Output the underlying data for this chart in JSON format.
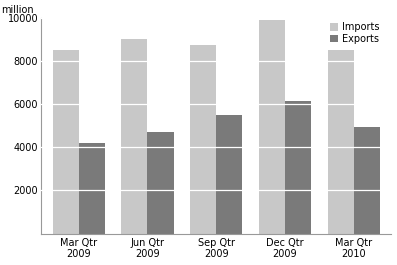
{
  "quarters": [
    "Mar Qtr\n2009",
    "Jun Qtr\n2009",
    "Sep Qtr\n2009",
    "Dec Qtr\n2009",
    "Mar Qtr\n2010"
  ],
  "imports": [
    8500,
    9000,
    8750,
    9900,
    8500
  ],
  "exports": [
    4200,
    4700,
    5500,
    6150,
    4950
  ],
  "imports_color": "#c8c8c8",
  "exports_color": "#7a7a7a",
  "ylabel": "million",
  "ylim": [
    0,
    10000
  ],
  "yticks": [
    0,
    2000,
    4000,
    6000,
    8000,
    10000
  ],
  "legend_labels": [
    "Imports",
    "Exports"
  ],
  "bar_width": 0.38,
  "background_color": "#ffffff",
  "gridline_color": "#ffffff"
}
